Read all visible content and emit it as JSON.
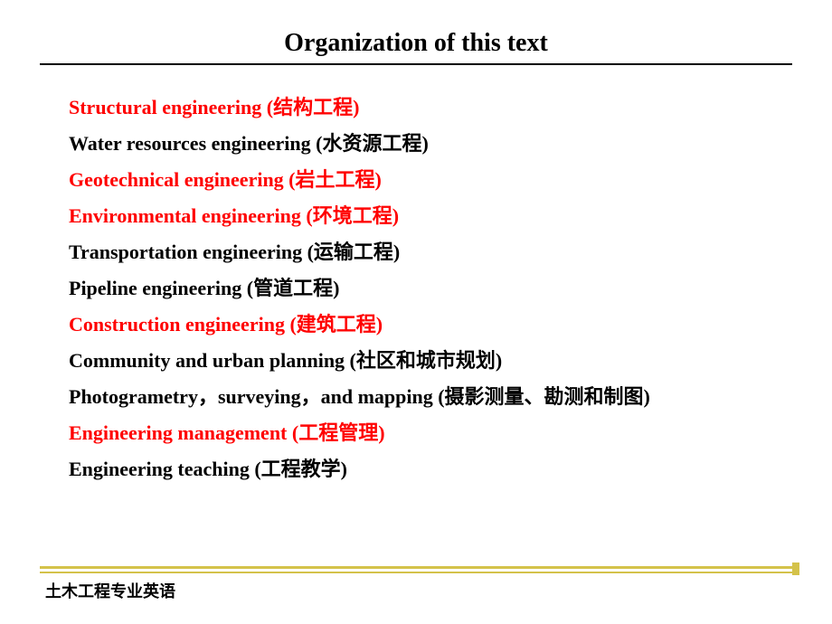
{
  "title": "Organization of this text",
  "items": [
    {
      "text": "Structural engineering (结构工程)",
      "color": "red"
    },
    {
      "text": "Water resources engineering (水资源工程)",
      "color": "black"
    },
    {
      "text": "Geotechnical engineering (岩土工程)",
      "color": "red"
    },
    {
      "text": "Environmental engineering (环境工程)",
      "color": "red"
    },
    {
      "text": "Transportation engineering (运输工程)",
      "color": "black"
    },
    {
      "text": "Pipeline engineering (管道工程)",
      "color": "black"
    },
    {
      "text": "Construction engineering (建筑工程)",
      "color": "red"
    },
    {
      "text": "Community and urban planning (社区和城市规划)",
      "color": "black"
    },
    {
      "text": "Photogrametry，surveying，and mapping (摄影测量、勘测和制图)",
      "color": "black"
    },
    {
      "text": "Engineering management (工程管理)",
      "color": "red"
    },
    {
      "text": "Engineering teaching (工程教学)",
      "color": "black"
    }
  ],
  "footer": "土木工程专业英语",
  "colors": {
    "highlight": "#ff0000",
    "text": "#000000",
    "accent": "#d4c24a",
    "background": "#ffffff"
  },
  "fontsize": {
    "title": 28,
    "item": 22,
    "footer": 18
  }
}
